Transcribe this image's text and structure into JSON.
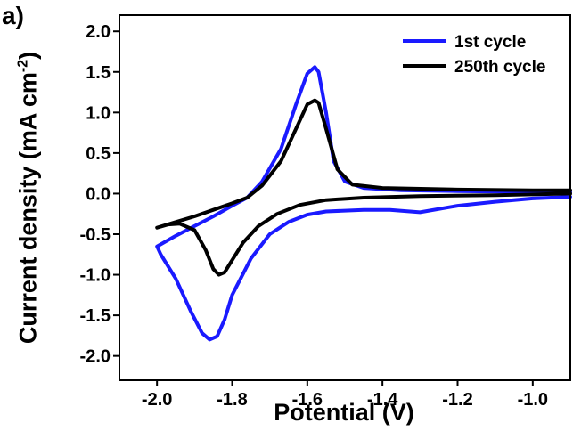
{
  "panel_label": "a)",
  "chart_data": {
    "type": "line",
    "xlabel": "Potential (V)",
    "ylabel": "Current density (mA cm",
    "ylabel_exponent": "-2",
    "ylabel_close": ")",
    "xlim": [
      -2.1,
      -0.9
    ],
    "ylim": [
      -2.3,
      2.2
    ],
    "x_ticks": [
      -2.0,
      -1.8,
      -1.6,
      -1.4,
      -1.2,
      -1.0
    ],
    "x_tick_labels": [
      "-2.0",
      "-1.8",
      "-1.6",
      "-1.4",
      "-1.2",
      "-1.0"
    ],
    "y_ticks": [
      -2.0,
      -1.5,
      -1.0,
      -0.5,
      0.0,
      0.5,
      1.0,
      1.5,
      2.0
    ],
    "y_tick_labels": [
      "-2.0",
      "-1.5",
      "-1.0",
      "-0.5",
      "0.0",
      "0.5",
      "1.0",
      "1.5",
      "2.0"
    ],
    "grid": false,
    "legend_position": "top-right",
    "series": [
      {
        "name": "1st cycle",
        "color": "#1a1aff",
        "points": [
          [
            -0.9,
            0.02
          ],
          [
            -1.0,
            0.02
          ],
          [
            -1.2,
            0.03
          ],
          [
            -1.35,
            0.04
          ],
          [
            -1.45,
            0.07
          ],
          [
            -1.5,
            0.15
          ],
          [
            -1.53,
            0.4
          ],
          [
            -1.55,
            1.0
          ],
          [
            -1.57,
            1.5
          ],
          [
            -1.58,
            1.56
          ],
          [
            -1.6,
            1.48
          ],
          [
            -1.63,
            1.1
          ],
          [
            -1.67,
            0.55
          ],
          [
            -1.72,
            0.15
          ],
          [
            -1.76,
            -0.05
          ],
          [
            -1.8,
            -0.15
          ],
          [
            -1.85,
            -0.28
          ],
          [
            -1.9,
            -0.4
          ],
          [
            -1.95,
            -0.52
          ],
          [
            -2.0,
            -0.65
          ],
          [
            -1.99,
            -0.75
          ],
          [
            -1.95,
            -1.05
          ],
          [
            -1.91,
            -1.45
          ],
          [
            -1.88,
            -1.72
          ],
          [
            -1.86,
            -1.8
          ],
          [
            -1.84,
            -1.76
          ],
          [
            -1.82,
            -1.55
          ],
          [
            -1.8,
            -1.25
          ],
          [
            -1.75,
            -0.8
          ],
          [
            -1.7,
            -0.5
          ],
          [
            -1.65,
            -0.35
          ],
          [
            -1.6,
            -0.26
          ],
          [
            -1.55,
            -0.22
          ],
          [
            -1.45,
            -0.2
          ],
          [
            -1.38,
            -0.2
          ],
          [
            -1.3,
            -0.23
          ],
          [
            -1.2,
            -0.15
          ],
          [
            -1.1,
            -0.1
          ],
          [
            -1.0,
            -0.06
          ],
          [
            -0.9,
            -0.04
          ]
        ]
      },
      {
        "name": "250th cycle",
        "color": "#000000",
        "points": [
          [
            -0.9,
            0.04
          ],
          [
            -1.0,
            0.04
          ],
          [
            -1.2,
            0.05
          ],
          [
            -1.4,
            0.07
          ],
          [
            -1.48,
            0.11
          ],
          [
            -1.52,
            0.3
          ],
          [
            -1.55,
            0.8
          ],
          [
            -1.57,
            1.12
          ],
          [
            -1.58,
            1.15
          ],
          [
            -1.6,
            1.1
          ],
          [
            -1.63,
            0.8
          ],
          [
            -1.67,
            0.4
          ],
          [
            -1.72,
            0.1
          ],
          [
            -1.76,
            -0.05
          ],
          [
            -1.8,
            -0.12
          ],
          [
            -1.85,
            -0.2
          ],
          [
            -1.9,
            -0.28
          ],
          [
            -1.95,
            -0.35
          ],
          [
            -2.0,
            -0.42
          ],
          [
            -1.97,
            -0.38
          ],
          [
            -1.94,
            -0.37
          ],
          [
            -1.9,
            -0.45
          ],
          [
            -1.87,
            -0.7
          ],
          [
            -1.85,
            -0.93
          ],
          [
            -1.835,
            -1.0
          ],
          [
            -1.82,
            -0.97
          ],
          [
            -1.8,
            -0.82
          ],
          [
            -1.77,
            -0.6
          ],
          [
            -1.73,
            -0.4
          ],
          [
            -1.68,
            -0.25
          ],
          [
            -1.62,
            -0.14
          ],
          [
            -1.55,
            -0.08
          ],
          [
            -1.45,
            -0.05
          ],
          [
            -1.3,
            -0.03
          ],
          [
            -1.1,
            -0.02
          ],
          [
            -0.9,
            0.0
          ]
        ]
      }
    ]
  }
}
